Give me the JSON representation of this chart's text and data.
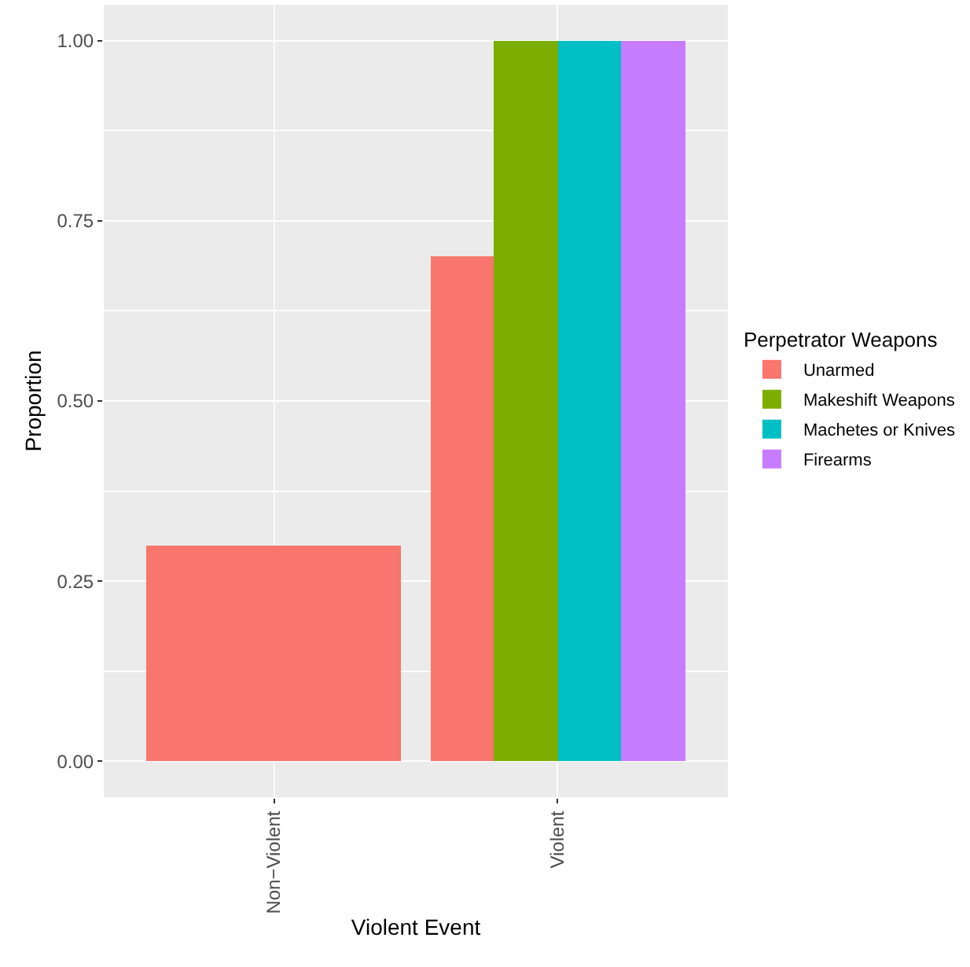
{
  "chart_data": {
    "type": "bar",
    "xlabel": "Violent Event",
    "ylabel": "Proportion",
    "legend_title": "Perpetrator Weapons",
    "categories": [
      "Non−Violent",
      "Violent"
    ],
    "series": [
      {
        "name": "Unarmed",
        "color": "#f8766d",
        "values": [
          0.3,
          0.7
        ]
      },
      {
        "name": "Makeshift Weapons",
        "color": "#7cae00",
        "values": [
          null,
          1.0
        ]
      },
      {
        "name": "Machetes or Knives",
        "color": "#00bfc4",
        "values": [
          null,
          1.0
        ]
      },
      {
        "name": "Firearms",
        "color": "#c77cff",
        "values": [
          null,
          1.0
        ]
      }
    ],
    "ylim": [
      -0.05,
      1.05
    ],
    "yticks": [
      {
        "value": 0,
        "label": "0.00"
      },
      {
        "value": 0.25,
        "label": "0.25"
      },
      {
        "value": 0.5,
        "label": "0.50"
      },
      {
        "value": 0.75,
        "label": "0.75"
      },
      {
        "value": 1,
        "label": "1.00"
      }
    ],
    "grid": true,
    "legend": "right"
  }
}
